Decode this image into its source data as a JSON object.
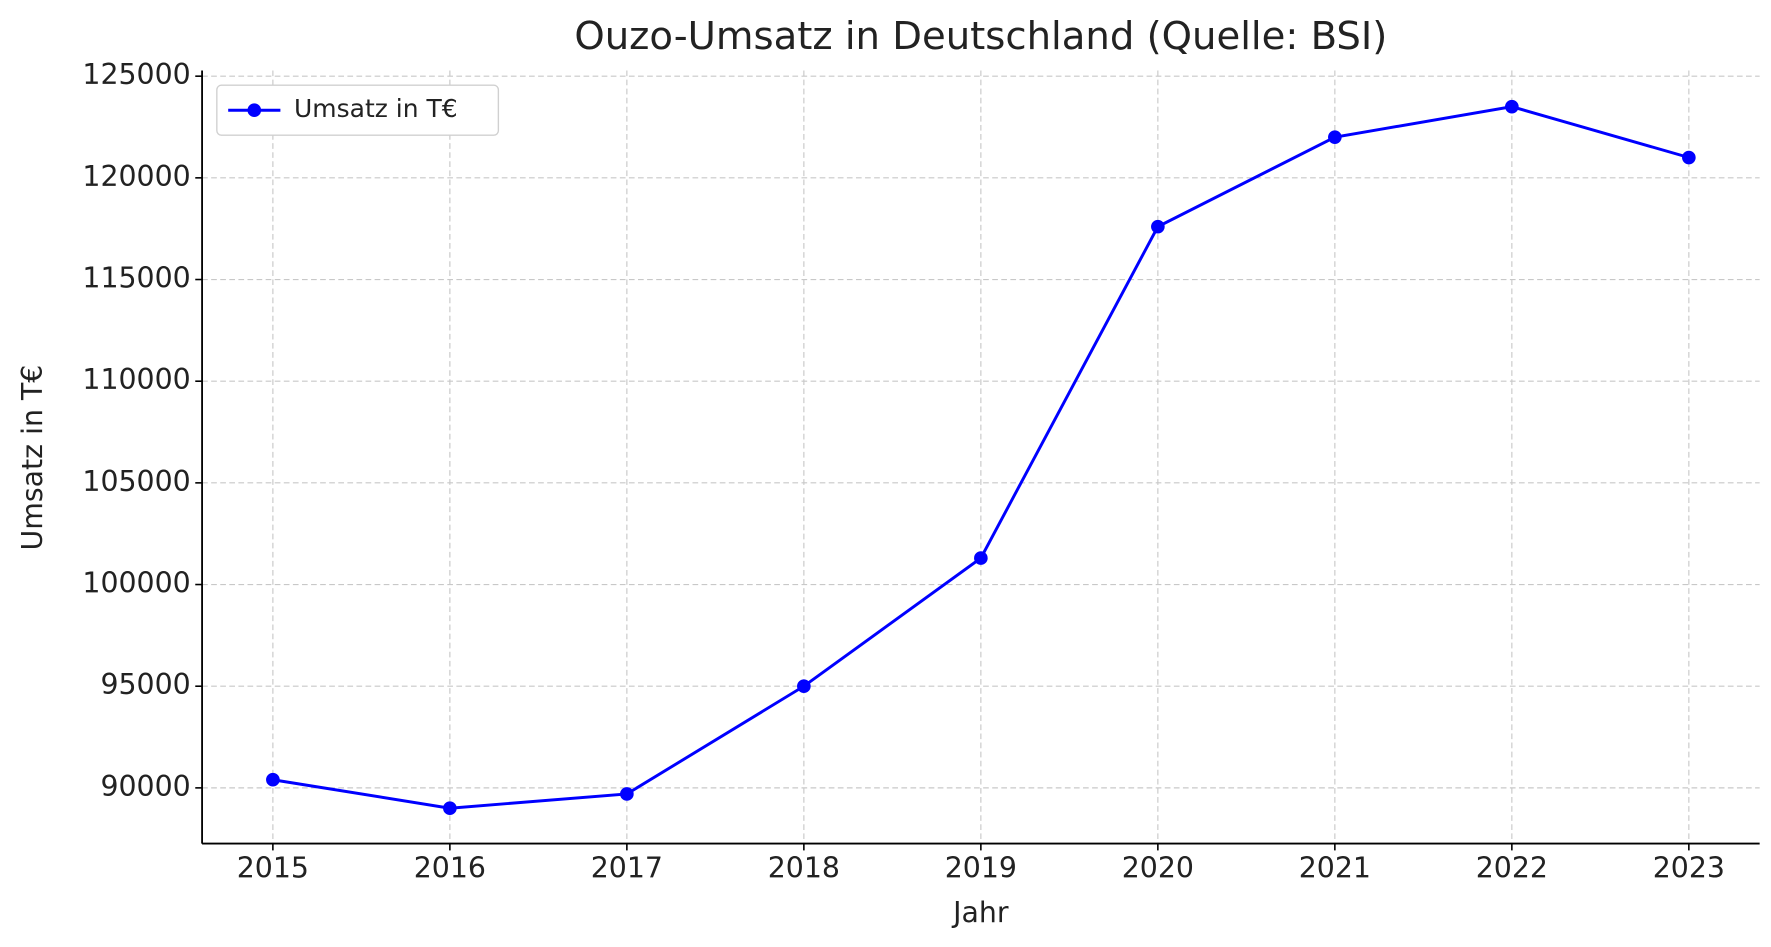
{
  "chart_data": {
    "type": "line",
    "title": "Ouzo-Umsatz in Deutschland (Quelle: BSI)",
    "xlabel": "Jahr",
    "ylabel": "Umsatz in T€",
    "x": [
      2015,
      2016,
      2017,
      2018,
      2019,
      2020,
      2021,
      2022,
      2023
    ],
    "series": [
      {
        "name": "Umsatz in T€",
        "color": "#0000ff",
        "values": [
          90400,
          89000,
          89700,
          95000,
          101300,
          117600,
          122000,
          123500,
          121000
        ]
      }
    ],
    "xlim": [
      2014.6,
      2023.4
    ],
    "xticks": [
      2015,
      2016,
      2017,
      2018,
      2019,
      2020,
      2021,
      2022,
      2023
    ],
    "ylim": [
      87260,
      125280
    ],
    "yticks": [
      90000,
      95000,
      100000,
      105000,
      110000,
      115000,
      120000,
      125000
    ],
    "grid": true,
    "legend": "upper left"
  }
}
